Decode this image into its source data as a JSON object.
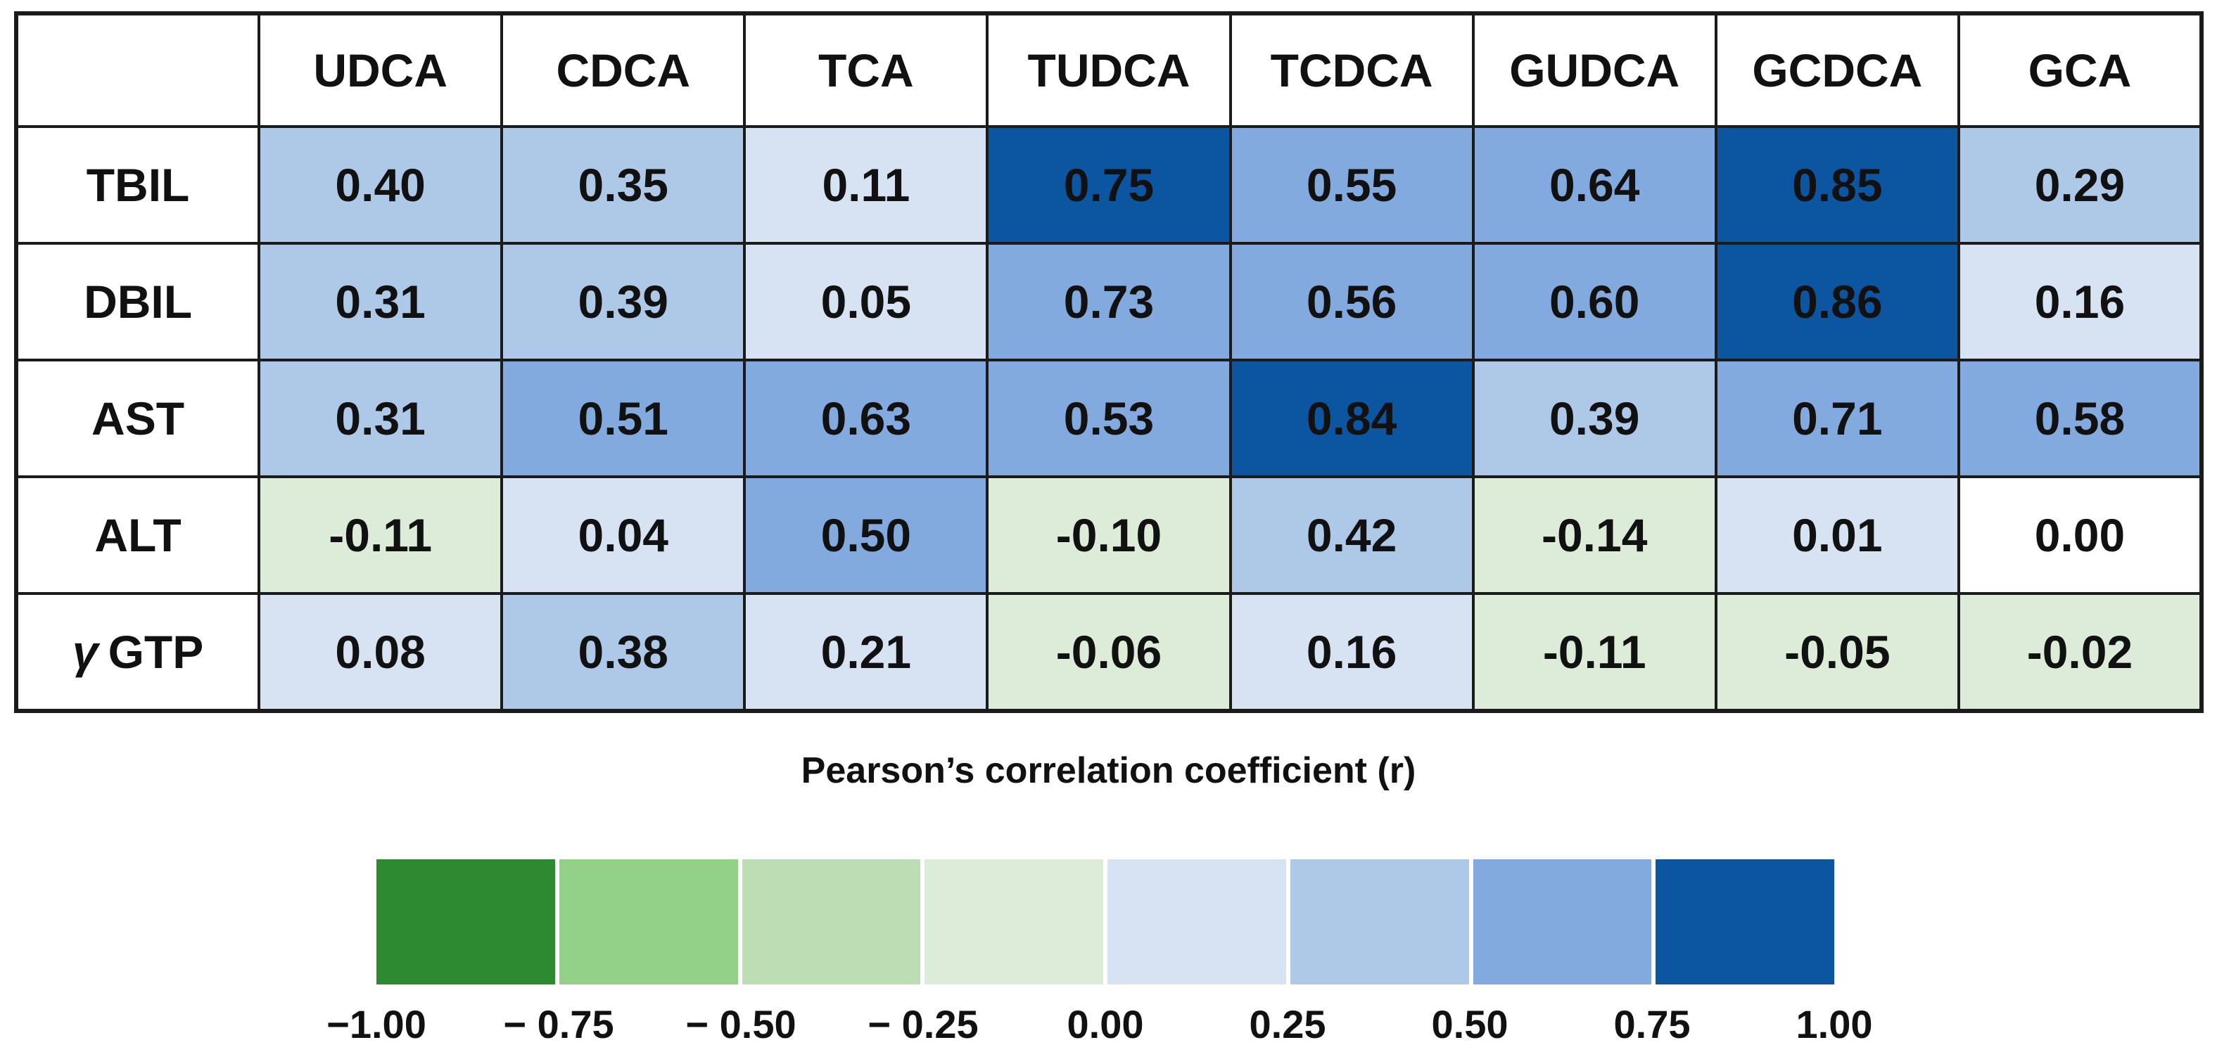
{
  "figure": {
    "background": "#ffffff",
    "border_color": "#1b1b1b"
  },
  "chart_data": {
    "type": "heatmap",
    "title": "Pearson’s correlation coefficient (r)",
    "columns": [
      "UDCA",
      "CDCA",
      "TCA",
      "TUDCA",
      "TCDCA",
      "GUDCA",
      "GCDCA",
      "GCA"
    ],
    "rows": [
      {
        "label": "TBIL",
        "values": [
          "0.40",
          "0.35",
          "0.11",
          "0.75",
          "0.55",
          "0.64",
          "0.85",
          "0.29"
        ]
      },
      {
        "label": "DBIL",
        "values": [
          "0.31",
          "0.39",
          "0.05",
          "0.73",
          "0.56",
          "0.60",
          "0.86",
          "0.16"
        ]
      },
      {
        "label": "AST",
        "values": [
          "0.31",
          "0.51",
          "0.63",
          "0.53",
          "0.84",
          "0.39",
          "0.71",
          "0.58"
        ]
      },
      {
        "label": "ALT",
        "values": [
          "-0.11",
          "0.04",
          "0.50",
          "-0.10",
          "0.42",
          "-0.14",
          "0.01",
          "0.00"
        ]
      },
      {
        "label": "GTP",
        "prefix_italic": "γ",
        "values": [
          "0.08",
          "0.38",
          "0.21",
          "-0.06",
          "0.16",
          "-0.11",
          "-0.05",
          "-0.02"
        ]
      }
    ],
    "value_range": [
      -1.0,
      1.0
    ],
    "bin_size": 0.25,
    "grid": true,
    "palette": {
      "green4": "#2d8a30",
      "green3": "#93d189",
      "green2": "#bcdeb4",
      "green1": "#dcecd8",
      "zero": "#ffffff",
      "blue1": "#d7e2f3",
      "blue2": "#aec8e8",
      "blue3": "#82aade",
      "blue4": "#0b55a1"
    },
    "colorbar": {
      "order": [
        "green4",
        "green3",
        "green2",
        "green1",
        "blue1",
        "blue2",
        "blue3",
        "blue4"
      ],
      "ticks": [
        "−1.00",
        "− 0.75",
        "− 0.50",
        "− 0.25",
        "0.00",
        "0.25",
        "0.50",
        "0.75",
        "1.00"
      ],
      "position": "bottom"
    }
  }
}
